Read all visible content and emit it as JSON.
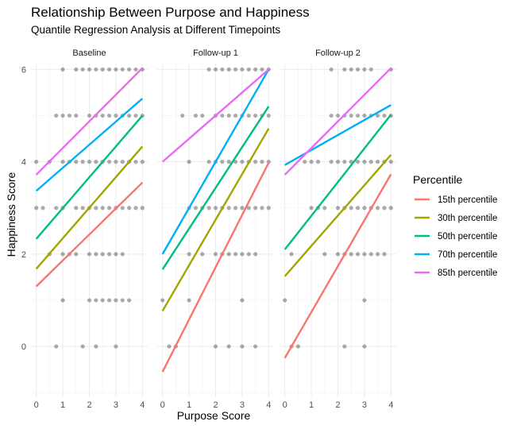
{
  "chart_data": {
    "type": "scatter",
    "title": "Relationship Between Purpose and Happiness",
    "subtitle": "Quantile Regression Analysis at Different Timepoints",
    "xlabel": "Purpose Score",
    "ylabel": "Happiness Score",
    "xlim": [
      -0.2,
      4.2
    ],
    "ylim": [
      -1.1,
      6.3
    ],
    "x_ticks": [
      "0",
      "1",
      "2",
      "3",
      "4"
    ],
    "y_ticks": [
      "0",
      "2",
      "4",
      "6"
    ],
    "grid": true,
    "legend": {
      "title": "Percentile",
      "position": "right",
      "entries": [
        "15th percentile",
        "30th percentile",
        "50th percentile",
        "70th percentile",
        "85th percentile"
      ]
    },
    "series_colors": {
      "15th percentile": "#F8766D",
      "30th percentile": "#A3A500",
      "50th percentile": "#00BF7D",
      "70th percentile": "#00B0F6",
      "85th percentile": "#E76BF3"
    },
    "point_color": "#000000",
    "panels": [
      {
        "name": "Baseline",
        "points": [
          [
            0,
            4
          ],
          [
            0,
            3
          ],
          [
            0.25,
            3
          ],
          [
            0.5,
            4
          ],
          [
            0.5,
            2
          ],
          [
            0.75,
            3
          ],
          [
            0.75,
            5
          ],
          [
            0.75,
            0
          ],
          [
            1,
            6
          ],
          [
            1,
            5
          ],
          [
            1,
            4
          ],
          [
            1,
            3
          ],
          [
            1,
            2
          ],
          [
            1,
            1
          ],
          [
            1.25,
            5
          ],
          [
            1.25,
            4
          ],
          [
            1.25,
            2
          ],
          [
            1.5,
            6
          ],
          [
            1.5,
            5
          ],
          [
            1.5,
            4
          ],
          [
            1.5,
            3
          ],
          [
            1.5,
            2
          ],
          [
            1.75,
            6
          ],
          [
            1.75,
            4
          ],
          [
            1.75,
            3
          ],
          [
            1.75,
            0
          ],
          [
            2,
            6
          ],
          [
            2,
            5
          ],
          [
            2,
            4
          ],
          [
            2,
            3
          ],
          [
            2,
            2
          ],
          [
            2,
            1
          ],
          [
            2.25,
            6
          ],
          [
            2.25,
            5
          ],
          [
            2.25,
            4
          ],
          [
            2.25,
            3
          ],
          [
            2.25,
            2
          ],
          [
            2.25,
            1
          ],
          [
            2.25,
            0
          ],
          [
            2.5,
            6
          ],
          [
            2.5,
            5
          ],
          [
            2.5,
            4
          ],
          [
            2.5,
            3
          ],
          [
            2.5,
            2
          ],
          [
            2.5,
            1
          ],
          [
            2.75,
            6
          ],
          [
            2.75,
            5
          ],
          [
            2.75,
            4
          ],
          [
            2.75,
            3
          ],
          [
            2.75,
            2
          ],
          [
            2.75,
            1
          ],
          [
            3,
            6
          ],
          [
            3,
            5
          ],
          [
            3,
            4
          ],
          [
            3,
            3
          ],
          [
            3,
            2
          ],
          [
            3,
            1
          ],
          [
            3,
            0
          ],
          [
            3.25,
            6
          ],
          [
            3.25,
            5
          ],
          [
            3.25,
            4
          ],
          [
            3.25,
            3
          ],
          [
            3.25,
            2
          ],
          [
            3.25,
            1
          ],
          [
            3.5,
            6
          ],
          [
            3.5,
            5
          ],
          [
            3.5,
            4
          ],
          [
            3.5,
            3
          ],
          [
            3.5,
            1
          ],
          [
            3.75,
            6
          ],
          [
            3.75,
            5
          ],
          [
            3.75,
            4
          ],
          [
            3.75,
            3
          ],
          [
            4,
            6
          ],
          [
            4,
            5
          ],
          [
            4,
            4
          ],
          [
            4,
            3
          ]
        ],
        "lines": {
          "15th percentile": [
            [
              0,
              1.3
            ],
            [
              4,
              3.55
            ]
          ],
          "30th percentile": [
            [
              0,
              1.68
            ],
            [
              4,
              4.33
            ]
          ],
          "50th percentile": [
            [
              0,
              2.33
            ],
            [
              4,
              5.0
            ]
          ],
          "70th percentile": [
            [
              0,
              3.37
            ],
            [
              4,
              5.37
            ]
          ],
          "85th percentile": [
            [
              0,
              3.72
            ],
            [
              4,
              6.03
            ]
          ]
        }
      },
      {
        "name": "Follow-up 1",
        "points": [
          [
            0,
            1
          ],
          [
            0.25,
            0
          ],
          [
            0.5,
            0
          ],
          [
            0.75,
            5
          ],
          [
            1,
            4
          ],
          [
            1,
            3
          ],
          [
            1,
            2
          ],
          [
            1,
            1
          ],
          [
            1.25,
            5
          ],
          [
            1.25,
            3
          ],
          [
            1.5,
            5
          ],
          [
            1.5,
            3
          ],
          [
            1.5,
            2
          ],
          [
            1.75,
            6
          ],
          [
            1.75,
            4
          ],
          [
            1.75,
            3
          ],
          [
            2,
            6
          ],
          [
            2,
            5
          ],
          [
            2,
            4
          ],
          [
            2,
            3
          ],
          [
            2,
            2
          ],
          [
            2,
            0
          ],
          [
            2.25,
            6
          ],
          [
            2.25,
            5
          ],
          [
            2.25,
            4
          ],
          [
            2.25,
            3
          ],
          [
            2.25,
            2
          ],
          [
            2.5,
            6
          ],
          [
            2.5,
            5
          ],
          [
            2.5,
            4
          ],
          [
            2.5,
            3
          ],
          [
            2.5,
            2
          ],
          [
            2.5,
            0
          ],
          [
            2.75,
            6
          ],
          [
            2.75,
            5
          ],
          [
            2.75,
            4
          ],
          [
            2.75,
            3
          ],
          [
            2.75,
            2
          ],
          [
            3,
            6
          ],
          [
            3,
            5
          ],
          [
            3,
            4
          ],
          [
            3,
            3
          ],
          [
            3,
            2
          ],
          [
            3,
            1
          ],
          [
            3,
            0
          ],
          [
            3.25,
            6
          ],
          [
            3.25,
            5
          ],
          [
            3.25,
            4
          ],
          [
            3.25,
            3
          ],
          [
            3.25,
            2
          ],
          [
            3.5,
            6
          ],
          [
            3.5,
            5
          ],
          [
            3.5,
            4
          ],
          [
            3.5,
            3
          ],
          [
            3.5,
            2
          ],
          [
            3.5,
            0
          ],
          [
            3.75,
            6
          ],
          [
            3.75,
            5
          ],
          [
            3.75,
            4
          ],
          [
            3.75,
            3
          ],
          [
            4,
            6
          ],
          [
            4,
            5
          ],
          [
            4,
            4
          ],
          [
            4,
            3
          ]
        ],
        "lines": {
          "15th percentile": [
            [
              0,
              -0.55
            ],
            [
              4,
              3.98
            ]
          ],
          "30th percentile": [
            [
              0,
              0.77
            ],
            [
              4,
              4.72
            ]
          ],
          "50th percentile": [
            [
              0,
              1.67
            ],
            [
              4,
              5.2
            ]
          ],
          "70th percentile": [
            [
              0,
              2.0
            ],
            [
              4,
              6.0
            ]
          ],
          "85th percentile": [
            [
              0,
              4.0
            ],
            [
              4,
              6.0
            ]
          ]
        }
      },
      {
        "name": "Follow-up 2",
        "points": [
          [
            0,
            1
          ],
          [
            0.25,
            2
          ],
          [
            0.25,
            0
          ],
          [
            0.5,
            0
          ],
          [
            0.75,
            4
          ],
          [
            1,
            4
          ],
          [
            1,
            3
          ],
          [
            1.25,
            4
          ],
          [
            1.25,
            3
          ],
          [
            1.5,
            3
          ],
          [
            1.5,
            2
          ],
          [
            1.75,
            6
          ],
          [
            1.75,
            5
          ],
          [
            1.75,
            4
          ],
          [
            2,
            5
          ],
          [
            2,
            4
          ],
          [
            2,
            3
          ],
          [
            2,
            2
          ],
          [
            2.25,
            6
          ],
          [
            2.25,
            5
          ],
          [
            2.25,
            4
          ],
          [
            2.25,
            3
          ],
          [
            2.25,
            2
          ],
          [
            2.25,
            0
          ],
          [
            2.5,
            6
          ],
          [
            2.5,
            5
          ],
          [
            2.5,
            4
          ],
          [
            2.5,
            3
          ],
          [
            2.5,
            2
          ],
          [
            2.75,
            6
          ],
          [
            2.75,
            5
          ],
          [
            2.75,
            4
          ],
          [
            2.75,
            3
          ],
          [
            2.75,
            2
          ],
          [
            3,
            6
          ],
          [
            3,
            5
          ],
          [
            3,
            4
          ],
          [
            3,
            3
          ],
          [
            3,
            2
          ],
          [
            3,
            1
          ],
          [
            3,
            0
          ],
          [
            3.25,
            6
          ],
          [
            3.25,
            5
          ],
          [
            3.25,
            4
          ],
          [
            3.25,
            3
          ],
          [
            3.25,
            2
          ],
          [
            3.5,
            5
          ],
          [
            3.5,
            4
          ],
          [
            3.5,
            3
          ],
          [
            3.5,
            2
          ],
          [
            3.75,
            5
          ],
          [
            3.75,
            4
          ],
          [
            3.75,
            3
          ],
          [
            3.75,
            2
          ],
          [
            4,
            6
          ],
          [
            4,
            5
          ],
          [
            4,
            4
          ],
          [
            4,
            3
          ]
        ],
        "lines": {
          "15th percentile": [
            [
              0,
              -0.25
            ],
            [
              4,
              3.73
            ]
          ],
          "30th percentile": [
            [
              0,
              1.52
            ],
            [
              4,
              4.15
            ]
          ],
          "50th percentile": [
            [
              0,
              2.1
            ],
            [
              4,
              5.02
            ]
          ],
          "70th percentile": [
            [
              0,
              3.93
            ],
            [
              4,
              5.23
            ]
          ],
          "85th percentile": [
            [
              0,
              3.72
            ],
            [
              4,
              6.03
            ]
          ]
        }
      }
    ]
  }
}
